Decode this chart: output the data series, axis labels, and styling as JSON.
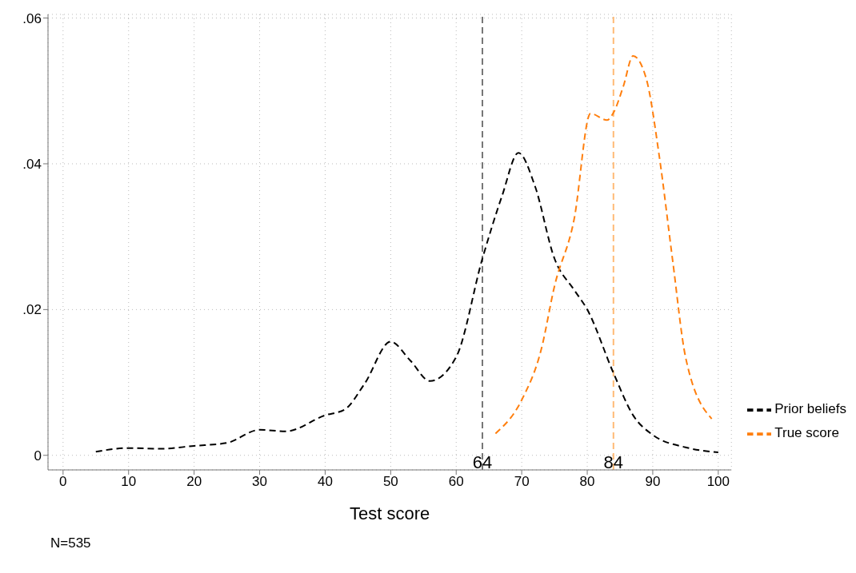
{
  "chart_data": {
    "type": "line",
    "xlabel": "Test score",
    "xlim": [
      -2.3,
      102
    ],
    "ylim": [
      -0.002,
      0.0605
    ],
    "xticks": [
      0,
      10,
      20,
      30,
      40,
      50,
      60,
      70,
      80,
      90,
      100
    ],
    "yticks": [
      0,
      {
        "value": 0.02,
        "label": ".02"
      },
      {
        "value": 0.04,
        "label": ".04"
      },
      {
        "value": 0.06,
        "label": ".06"
      }
    ],
    "grid": true,
    "legend": "right",
    "marker": "none",
    "line_style": "dashed",
    "series": [
      {
        "name": "Prior beliefs",
        "color": "#000000",
        "x": [
          5,
          10,
          15,
          20,
          25,
          30,
          34,
          40,
          43,
          46,
          50,
          53,
          56,
          60,
          64,
          67,
          69.5,
          72,
          75,
          78,
          80,
          84,
          87,
          90,
          95,
          100
        ],
        "values": [
          0.0005,
          0.001,
          0.0009,
          0.0013,
          0.0017,
          0.0035,
          0.0033,
          0.0055,
          0.0063,
          0.0098,
          0.0156,
          0.013,
          0.0102,
          0.0135,
          0.027,
          0.0356,
          0.0415,
          0.037,
          0.027,
          0.0227,
          0.02,
          0.0113,
          0.0055,
          0.0028,
          0.0011,
          0.0004
        ]
      },
      {
        "name": "True score",
        "color": "#ff7f0e",
        "x": [
          66,
          70,
          73,
          75,
          78,
          80.5,
          83,
          84,
          85.5,
          87,
          89,
          91,
          93,
          95,
          99
        ],
        "values": [
          0.003,
          0.0076,
          0.0146,
          0.0232,
          0.0324,
          0.0469,
          0.046,
          0.047,
          0.0506,
          0.0548,
          0.0517,
          0.041,
          0.027,
          0.0135,
          0.005
        ]
      }
    ],
    "ref_lines": [
      {
        "axis": "x",
        "value": 64,
        "label": "64",
        "color": "#777777",
        "line_style": "dashed"
      },
      {
        "axis": "x",
        "value": 84,
        "label": "84",
        "color": "#ffbb77",
        "line_style": "dashed"
      }
    ],
    "annotations": [
      "N=535"
    ]
  }
}
